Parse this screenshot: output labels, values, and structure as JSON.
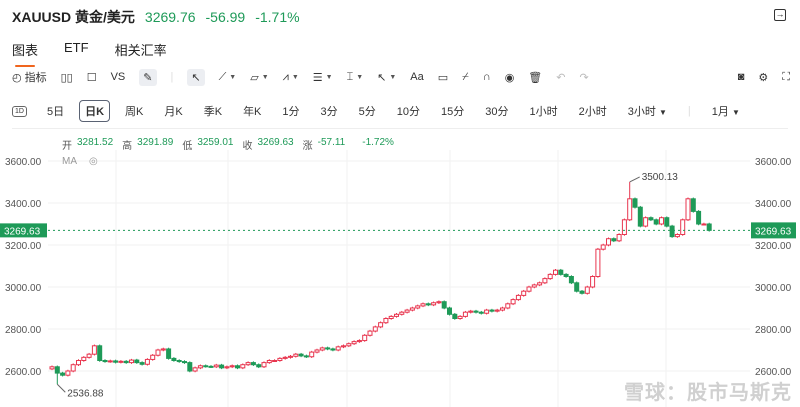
{
  "header": {
    "symbol": "XAUUSD 黄金/美元",
    "price": "3269.76",
    "change": "-56.99",
    "change_pct": "-1.71%"
  },
  "tabs": [
    {
      "label": "图表",
      "active": true
    },
    {
      "label": "ETF"
    },
    {
      "label": "相关汇率"
    }
  ],
  "toolbar": {
    "indicator": "指标",
    "vs": "VS",
    "text_tool": "Aa"
  },
  "periods": {
    "icon": "1D",
    "items": [
      "5日",
      "日K",
      "周K",
      "月K",
      "季K",
      "年K",
      "1分",
      "3分",
      "5分",
      "10分",
      "15分",
      "30分",
      "1小时",
      "2小时",
      "3小时"
    ],
    "active": "日K",
    "range": "1月"
  },
  "ohlc": {
    "open_label": "开",
    "open": "3281.52",
    "high_label": "高",
    "high": "3291.89",
    "low_label": "低",
    "low": "3259.01",
    "close_label": "收",
    "close": "3269.63",
    "chg_label": "涨",
    "chg": "-57.11",
    "chg_pct": "-1.72%"
  },
  "ma_label": "MA",
  "watermark": "雪球：股市马斯克",
  "colors": {
    "up": "#e8364f",
    "down": "#1e9a58",
    "accent": "#f0651e"
  },
  "chart_data": {
    "type": "candlestick",
    "y_ticks": [
      "3600.00",
      "3400.00",
      "3200.00",
      "3000.00",
      "2800.00",
      "2600.00"
    ],
    "ylim": [
      2500,
      3700
    ],
    "grid": true,
    "current_price": "3269.63",
    "max_label": "3500.13",
    "max": 3500.13,
    "max_index": 109,
    "min_label": "2536.88",
    "min": 2536.88,
    "min_index": 1,
    "first_open": 2610,
    "closes": [
      2620,
      2590,
      2580,
      2600,
      2630,
      2650,
      2665,
      2680,
      2720,
      2650,
      2645,
      2648,
      2642,
      2646,
      2640,
      2652,
      2640,
      2632,
      2655,
      2675,
      2700,
      2705,
      2660,
      2650,
      2645,
      2640,
      2600,
      2615,
      2625,
      2622,
      2620,
      2628,
      2615,
      2620,
      2625,
      2615,
      2630,
      2640,
      2630,
      2620,
      2640,
      2650,
      2650,
      2660,
      2665,
      2670,
      2680,
      2672,
      2668,
      2690,
      2700,
      2710,
      2705,
      2700,
      2715,
      2720,
      2730,
      2740,
      2745,
      2770,
      2790,
      2810,
      2830,
      2850,
      2860,
      2870,
      2880,
      2890,
      2900,
      2910,
      2920,
      2915,
      2925,
      2930,
      2900,
      2870,
      2850,
      2860,
      2880,
      2885,
      2880,
      2875,
      2890,
      2885,
      2890,
      2900,
      2920,
      2940,
      2960,
      2980,
      3000,
      3010,
      3020,
      3040,
      3060,
      3080,
      3060,
      3050,
      3020,
      2980,
      2970,
      3000,
      3050,
      3180,
      3200,
      3230,
      3220,
      3250,
      3320,
      3420,
      3380,
      3290,
      3330,
      3320,
      3300,
      3330,
      3290,
      3240,
      3250,
      3320,
      3420,
      3360,
      3300,
      3300,
      3269.63
    ]
  }
}
